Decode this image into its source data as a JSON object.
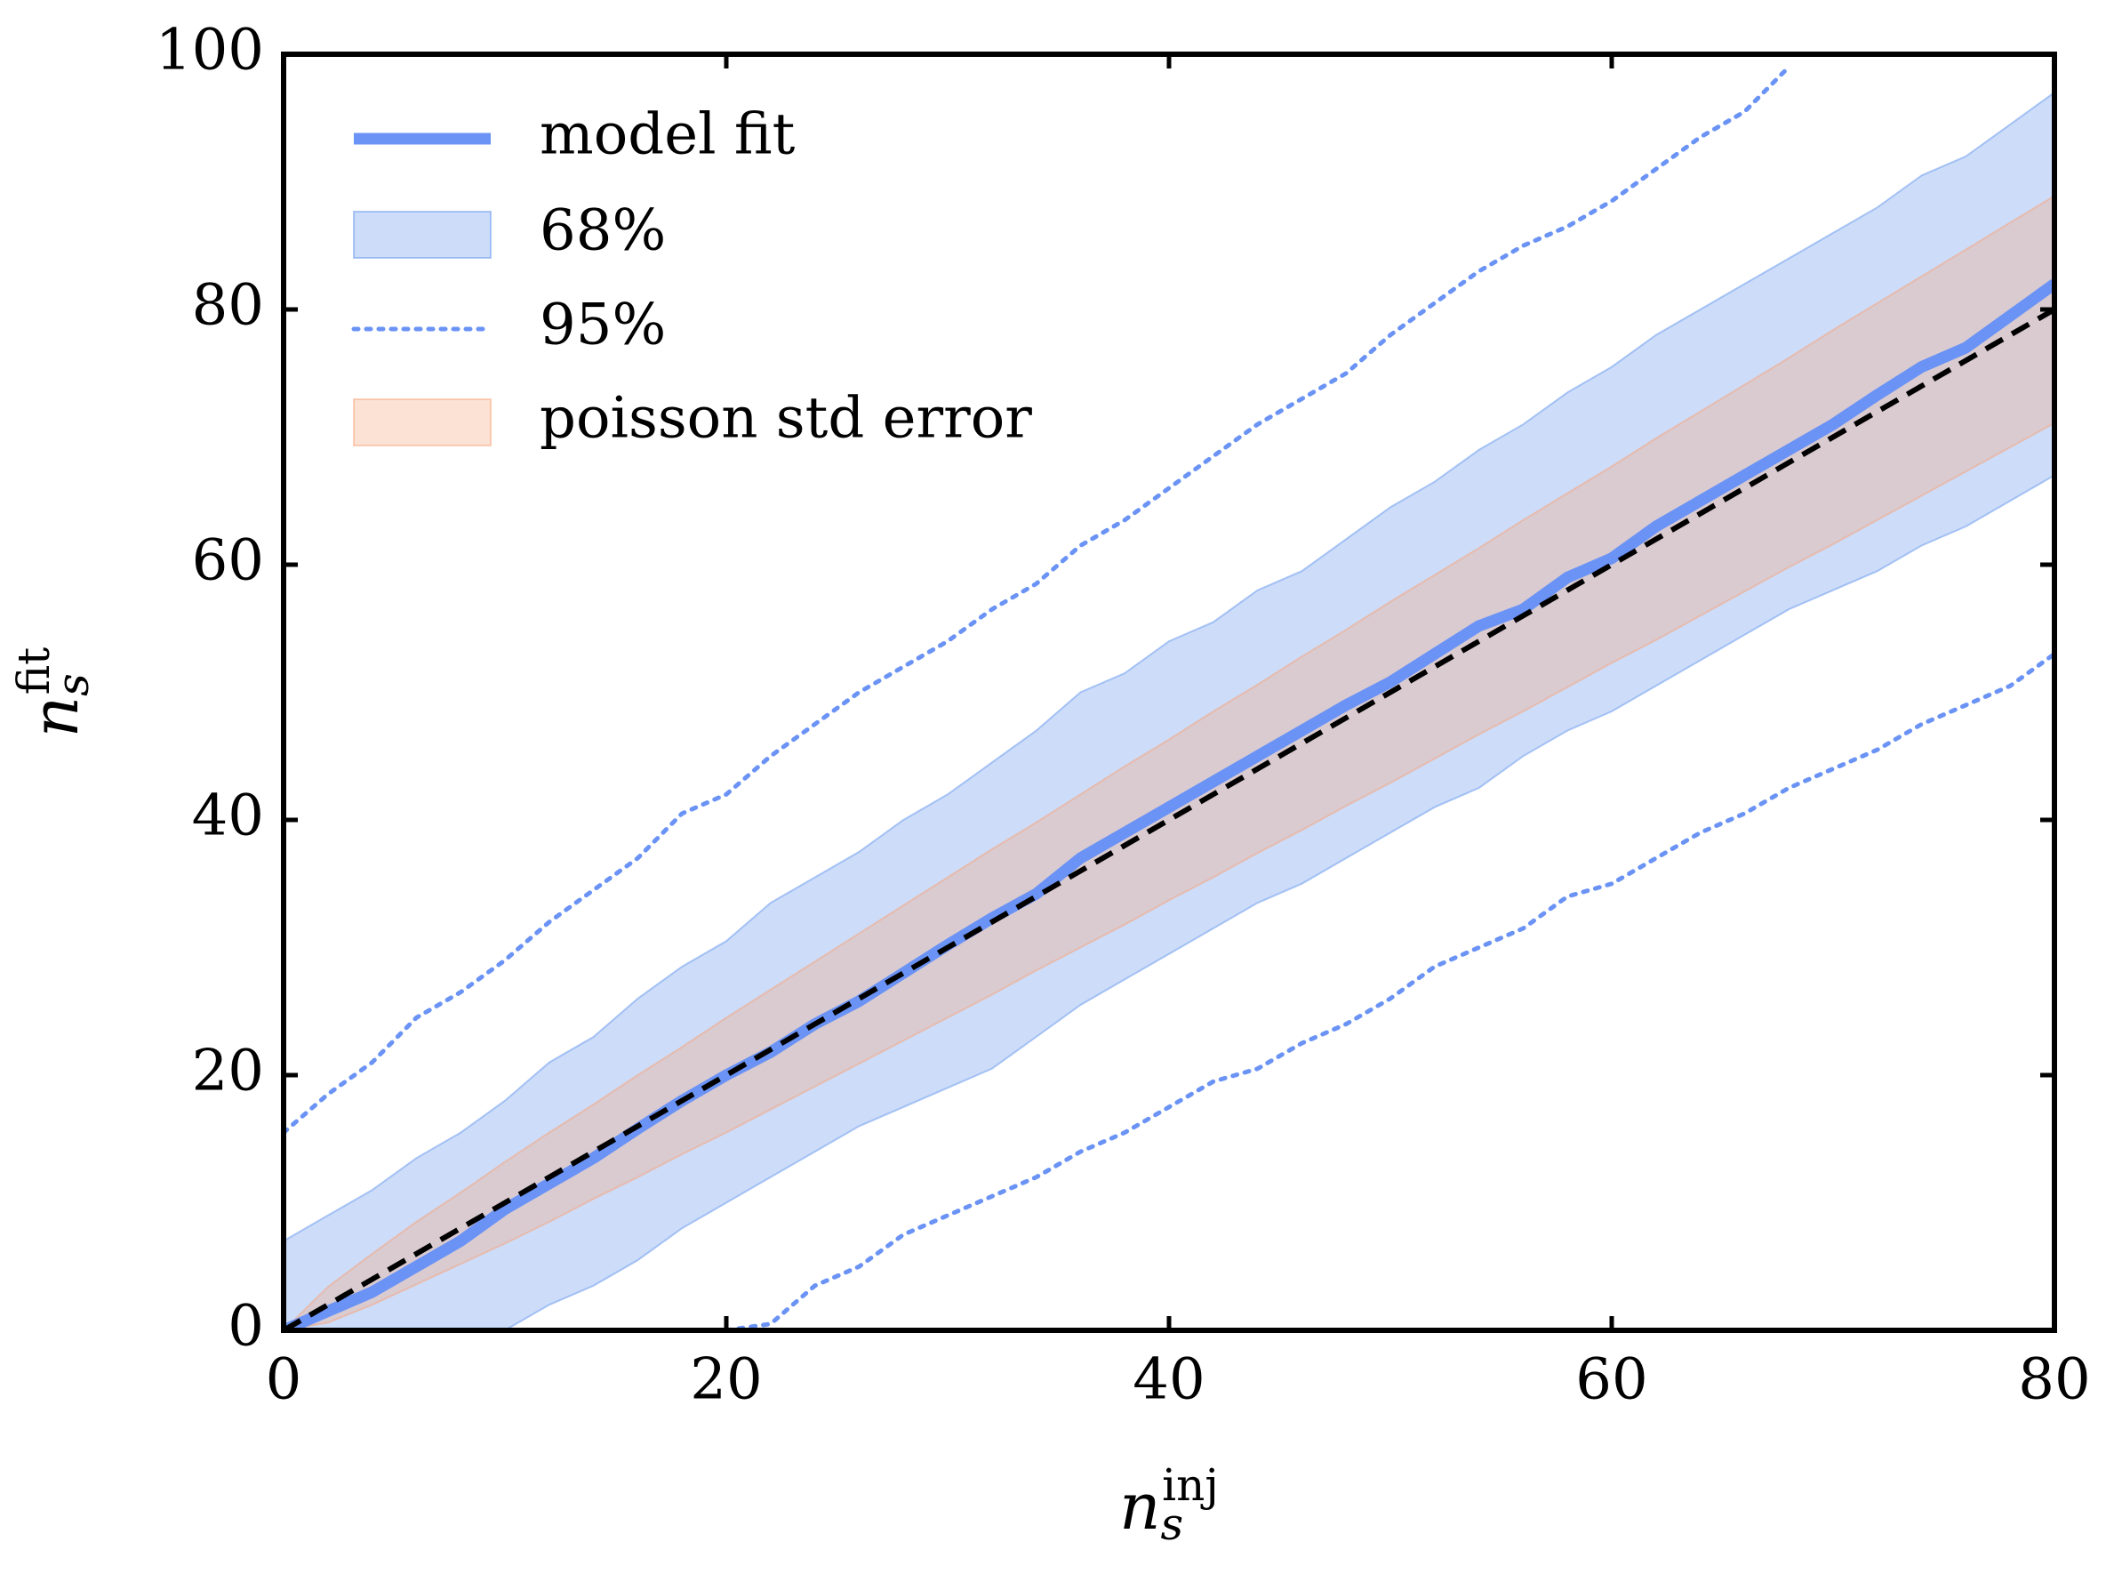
{
  "chart_data": {
    "type": "line",
    "xlabel": {
      "base": "n",
      "sub": "s",
      "sup": "inj"
    },
    "ylabel": {
      "base": "n",
      "sub": "s",
      "sup": "fit"
    },
    "x": [
      0,
      2,
      4,
      6,
      8,
      10,
      12,
      14,
      16,
      18,
      20,
      22,
      24,
      26,
      28,
      30,
      32,
      34,
      36,
      38,
      40,
      42,
      44,
      46,
      48,
      50,
      52,
      54,
      56,
      58,
      60,
      62,
      64,
      66,
      68,
      70,
      72,
      74,
      76,
      78,
      80
    ],
    "series": [
      {
        "name": "model fit",
        "kind": "line",
        "color": "#6a93f5",
        "values": [
          0,
          1.5,
          3,
          5,
          7,
          9.5,
          11.5,
          13.5,
          15.8,
          18,
          20,
          21.8,
          24,
          25.8,
          28,
          30.2,
          32.3,
          34.2,
          37,
          39,
          41,
          43,
          45,
          47,
          49,
          50.8,
          53,
          55.2,
          56.5,
          59,
          60.5,
          63,
          65,
          67,
          69,
          71,
          73.3,
          75.5,
          77,
          79.5,
          82
        ]
      },
      {
        "name": "68%",
        "kind": "band",
        "color": "#6495ed",
        "lower": [
          0,
          0,
          0,
          0,
          0,
          0,
          2,
          3.5,
          5.5,
          8,
          10,
          12,
          14,
          16,
          17.5,
          19,
          20.5,
          23,
          25.5,
          27.5,
          29.5,
          31.5,
          33.5,
          35,
          37,
          39,
          41,
          42.5,
          45,
          47,
          48.5,
          50.5,
          52.5,
          54.5,
          56.5,
          58,
          59.5,
          61.5,
          63,
          65,
          67
        ],
        "upper": [
          7,
          9,
          11,
          13.5,
          15.5,
          18,
          21,
          23,
          26,
          28.5,
          30.5,
          33.5,
          35.5,
          37.5,
          40,
          42,
          44.5,
          47,
          50,
          51.5,
          54,
          55.5,
          58,
          59.5,
          62,
          64.5,
          66.5,
          69,
          71,
          73.5,
          75.5,
          78,
          80,
          82,
          84,
          86,
          88,
          90.5,
          92,
          94.5,
          97
        ]
      },
      {
        "name": "95%",
        "kind": "dotted",
        "color": "#6a93f5",
        "lower": [
          null,
          null,
          null,
          null,
          null,
          null,
          null,
          null,
          null,
          null,
          0,
          0.5,
          3.5,
          5,
          7.5,
          9,
          10.5,
          12,
          14,
          15.5,
          17.5,
          19.5,
          20.5,
          22.5,
          24,
          26,
          28.5,
          30,
          31.5,
          34,
          35,
          37,
          39,
          40.5,
          42.5,
          44,
          45.5,
          47.5,
          49,
          50.5,
          53
        ],
        "upper": [
          15.5,
          18.5,
          21,
          24.5,
          26.5,
          29,
          32,
          34.5,
          37,
          40.5,
          42,
          45,
          47.5,
          50,
          52,
          54,
          56.5,
          58.5,
          61.5,
          63.5,
          66,
          68.5,
          71,
          73,
          75,
          78,
          80.5,
          83,
          85,
          86.5,
          88.5,
          91,
          93.5,
          95.5,
          99,
          null,
          null,
          null,
          null,
          null,
          null
        ]
      },
      {
        "name": "poisson std error",
        "kind": "band",
        "color": "#f7a47c",
        "lower": [
          0,
          0.6,
          2,
          3.6,
          5.2,
          6.8,
          8.5,
          10.3,
          12,
          13.8,
          15.5,
          17.3,
          19.1,
          20.9,
          22.7,
          24.5,
          26.3,
          28.2,
          30,
          31.8,
          33.7,
          35.5,
          37.4,
          39.2,
          41.1,
          42.9,
          44.8,
          46.7,
          48.5,
          50.4,
          52.3,
          54.1,
          56,
          57.9,
          59.8,
          61.6,
          63.5,
          65.4,
          67.3,
          69.2,
          71.1
        ],
        "upper": [
          0,
          3.4,
          6,
          8.5,
          10.8,
          13.2,
          15.5,
          17.7,
          20,
          22.2,
          24.5,
          26.7,
          28.9,
          31.1,
          33.3,
          35.5,
          37.7,
          39.8,
          42,
          44.2,
          46.3,
          48.5,
          50.6,
          52.8,
          54.9,
          57.1,
          59.2,
          61.3,
          63.5,
          65.6,
          67.7,
          69.9,
          72,
          74.1,
          76.2,
          78.4,
          80.5,
          82.6,
          84.7,
          86.8,
          88.9
        ]
      }
    ],
    "diagonal": {
      "x": [
        0,
        80
      ],
      "values": [
        0,
        80
      ],
      "color": "#000000"
    },
    "xlim": [
      0,
      80
    ],
    "xticks": [
      0,
      20,
      40,
      60,
      80
    ],
    "ylim": [
      0,
      100
    ],
    "yticks": [
      0,
      20,
      40,
      60,
      80,
      100
    ],
    "legend": "upper left"
  }
}
